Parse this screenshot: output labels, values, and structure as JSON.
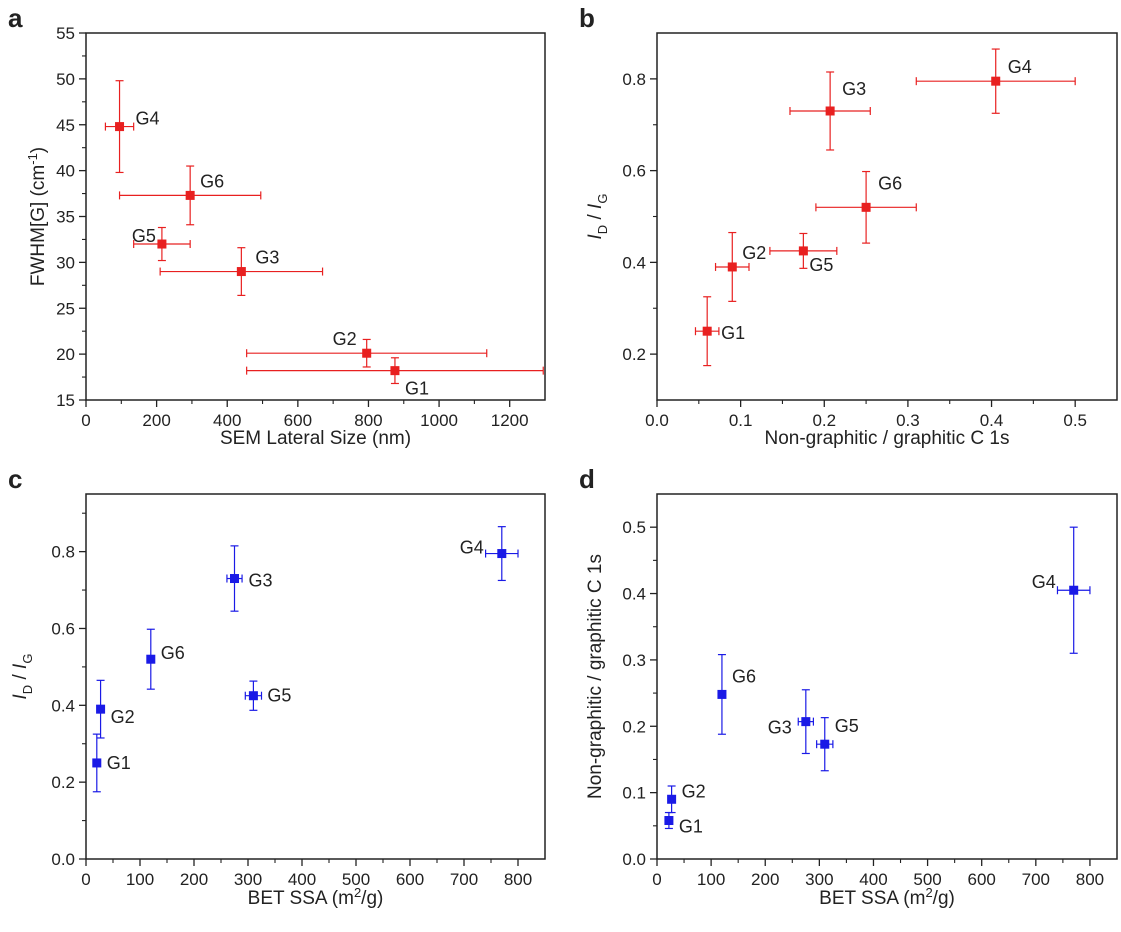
{
  "chart_data": [
    {
      "panel": "a",
      "type": "scatter",
      "color": "#e82020",
      "xlabel": "SEM Lateral Size (nm)",
      "ylabel": "FWHM[G] (cm-1)",
      "xlim": [
        0,
        1300
      ],
      "ylim": [
        15,
        55
      ],
      "xticks": [
        0,
        200,
        400,
        600,
        800,
        1000,
        1200
      ],
      "yticks": [
        15,
        20,
        25,
        30,
        35,
        40,
        45,
        50,
        55
      ],
      "points": [
        {
          "label": "G4",
          "x": 95,
          "y": 44.8,
          "xerr": 40,
          "yerr": 5.0
        },
        {
          "label": "G6",
          "x": 295,
          "y": 37.3,
          "xerr": 200,
          "yerr": 3.2
        },
        {
          "label": "G5",
          "x": 215,
          "y": 32.0,
          "xerr": 80,
          "yerr": 1.8
        },
        {
          "label": "G3",
          "x": 440,
          "y": 29.0,
          "xerr": 230,
          "yerr": 2.6
        },
        {
          "label": "G2",
          "x": 795,
          "y": 20.1,
          "xerr": 340,
          "yerr": 1.5
        },
        {
          "label": "G1",
          "x": 875,
          "y": 18.2,
          "xerr": 420,
          "yerr": 1.4
        }
      ]
    },
    {
      "panel": "b",
      "type": "scatter",
      "color": "#e82020",
      "xlabel": "Non-graphitic / graphitic C 1s",
      "ylabel": "ID / IG",
      "xlim": [
        0.0,
        0.55
      ],
      "ylim": [
        0.1,
        0.9
      ],
      "xticks": [
        0.0,
        0.1,
        0.2,
        0.3,
        0.4,
        0.5
      ],
      "yticks": [
        0.2,
        0.4,
        0.6,
        0.8
      ],
      "points": [
        {
          "label": "G1",
          "x": 0.06,
          "y": 0.25,
          "xerr": 0.014,
          "yerr": 0.075
        },
        {
          "label": "G2",
          "x": 0.09,
          "y": 0.39,
          "xerr": 0.02,
          "yerr": 0.075
        },
        {
          "label": "G5",
          "x": 0.175,
          "y": 0.425,
          "xerr": 0.04,
          "yerr": 0.038
        },
        {
          "label": "G6",
          "x": 0.25,
          "y": 0.52,
          "xerr": 0.06,
          "yerr": 0.078
        },
        {
          "label": "G3",
          "x": 0.207,
          "y": 0.73,
          "xerr": 0.048,
          "yerr": 0.085
        },
        {
          "label": "G4",
          "x": 0.405,
          "y": 0.795,
          "xerr": 0.095,
          "yerr": 0.07
        }
      ]
    },
    {
      "panel": "c",
      "type": "scatter",
      "color": "#1a1ae6",
      "xlabel": "BET SSA (m2/g)",
      "ylabel": "ID / IG",
      "xlim": [
        0,
        850
      ],
      "ylim": [
        0.0,
        0.95
      ],
      "xticks": [
        0,
        100,
        200,
        300,
        400,
        500,
        600,
        700,
        800
      ],
      "yticks": [
        0.0,
        0.2,
        0.4,
        0.6,
        0.8
      ],
      "points": [
        {
          "label": "G1",
          "x": 20,
          "y": 0.25,
          "xerr": 4,
          "yerr": 0.075
        },
        {
          "label": "G2",
          "x": 27,
          "y": 0.39,
          "xerr": 4,
          "yerr": 0.075
        },
        {
          "label": "G6",
          "x": 120,
          "y": 0.52,
          "xerr": 6,
          "yerr": 0.078
        },
        {
          "label": "G5",
          "x": 310,
          "y": 0.425,
          "xerr": 15,
          "yerr": 0.038
        },
        {
          "label": "G3",
          "x": 275,
          "y": 0.73,
          "xerr": 14,
          "yerr": 0.085
        },
        {
          "label": "G4",
          "x": 770,
          "y": 0.795,
          "xerr": 30,
          "yerr": 0.07
        }
      ]
    },
    {
      "panel": "d",
      "type": "scatter",
      "color": "#1a1ae6",
      "xlabel": "BET SSA (m2/g)",
      "ylabel": "Non-graphitic / graphitic C 1s",
      "xlim": [
        0,
        850
      ],
      "ylim": [
        0.0,
        0.55
      ],
      "xticks": [
        0,
        100,
        200,
        300,
        400,
        500,
        600,
        700,
        800
      ],
      "yticks": [
        0.0,
        0.1,
        0.2,
        0.3,
        0.4,
        0.5
      ],
      "points": [
        {
          "label": "G1",
          "x": 22,
          "y": 0.058,
          "xerr": 5,
          "yerr": 0.012
        },
        {
          "label": "G2",
          "x": 27,
          "y": 0.09,
          "xerr": 5,
          "yerr": 0.02
        },
        {
          "label": "G6",
          "x": 120,
          "y": 0.248,
          "xerr": 6,
          "yerr": 0.06
        },
        {
          "label": "G3",
          "x": 275,
          "y": 0.207,
          "xerr": 14,
          "yerr": 0.048
        },
        {
          "label": "G5",
          "x": 310,
          "y": 0.173,
          "xerr": 15,
          "yerr": 0.04
        },
        {
          "label": "G4",
          "x": 770,
          "y": 0.405,
          "xerr": 30,
          "yerr": 0.095
        }
      ]
    }
  ]
}
